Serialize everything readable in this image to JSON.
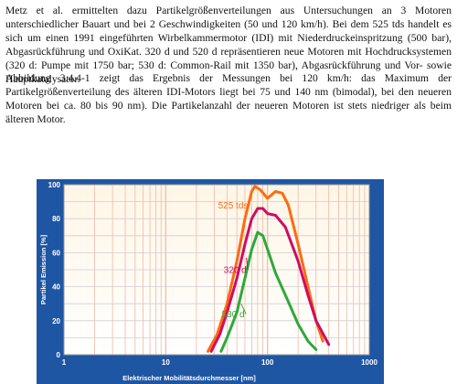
{
  "text": {
    "paragraph1": "Metz et al. ermittelten dazu Partikelgrößenverteilungen aus Untersuchungen an 3 Motoren unterschiedlicher Bauart und bei 2 Geschwindigkeiten (50 und 120 km/h). Bei dem 525 tds handelt es sich um einen 1991 eingeführten Wirbelkammermotor (IDI) mit Niederdruckeinspritzung (500 bar), Abgasrückführung und OxiKat. 320 d und 520 d repräsentieren neue Motoren mit Hochdrucksystemen (320 d: Pumpe mit 1750 bar; 530 d: Common-Rail mit 1350 bar), Abgasrückführung und Vor- sowie Hauptkatalysator.",
    "paragraph2": "Abbildung 3.4.4-1 zeigt das Ergebnis der Messungen bei 120 km/h: das Maximum der Partikelgrößenverteilung des älteren IDI-Motors liegt bei 75 und 140 nm (bimodal), bei den neueren Motoren bei ca. 80 bis 90 nm). Die Partikelanzahl der neueren Motoren ist stets niedriger als beim älteren Motor."
  },
  "colors": {
    "figure_background": "#1f56a3",
    "plot_background_top": "#fff6e6",
    "plot_background_bottom": "#ffffff",
    "grid_vertical": "#f0b8a8",
    "grid_horizontal": "#cfcfcf",
    "tick_text": "#ffffff"
  },
  "chart_data": {
    "type": "line",
    "xscale": "log",
    "xlim": [
      1,
      1000
    ],
    "ylim": [
      0,
      100
    ],
    "grid": true,
    "xlabel": "Elektrischer Mobilitätsdurchmesser [nm]",
    "ylabel": "Partikel Emission [%]",
    "x_ticks": [
      1,
      10,
      100,
      1000
    ],
    "x_tick_labels": [
      "1",
      "10",
      "100",
      "1000"
    ],
    "y_ticks": [
      0,
      20,
      40,
      60,
      80,
      100
    ],
    "y_tick_labels": [
      "0",
      "20",
      "40",
      "60",
      "80",
      "100"
    ],
    "series": [
      {
        "name": "525 tds",
        "color": "#ff6a10",
        "x": [
          26,
          32,
          40,
          50,
          60,
          70,
          75,
          85,
          100,
          120,
          140,
          160,
          200,
          250,
          300,
          350
        ],
        "y": [
          2,
          12,
          30,
          55,
          80,
          96,
          99,
          97,
          92,
          96,
          95,
          88,
          65,
          40,
          20,
          8
        ]
      },
      {
        "name": "320 d",
        "color": "#cc0e62",
        "x": [
          28,
          34,
          40,
          50,
          60,
          70,
          80,
          90,
          100,
          120,
          150,
          200,
          250,
          300,
          400
        ],
        "y": [
          2,
          12,
          25,
          45,
          65,
          80,
          86,
          86,
          83,
          82,
          75,
          55,
          35,
          20,
          6
        ]
      },
      {
        "name": "530 d",
        "color": "#2da83a",
        "x": [
          35,
          40,
          50,
          60,
          70,
          80,
          90,
          100,
          120,
          150,
          200,
          250,
          300
        ],
        "y": [
          2,
          10,
          25,
          45,
          62,
          72,
          70,
          62,
          48,
          35,
          18,
          8,
          3
        ]
      }
    ]
  }
}
